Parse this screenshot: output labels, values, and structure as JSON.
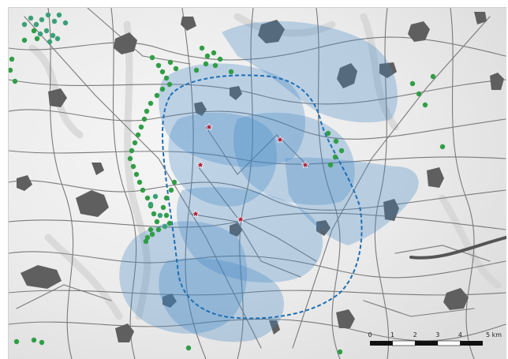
{
  "map": {
    "base_color": "#ececec",
    "road_color": "#7a7a7a",
    "settlement_color": "#5f5f5f",
    "coverage_color": "#3f86c4",
    "boundary_color": "#1f6fb5",
    "site_marker_color": "#b0203a",
    "green_point_color": "#2f9e44",
    "teal_point_color": "#3aa079",
    "coverage_layers": 8,
    "site_markers": 7,
    "marker_symbol": "star",
    "boundary_style": "dashed"
  },
  "scale_bar": {
    "ticks": [
      "0",
      "1",
      "2",
      "3",
      "4",
      "5 km"
    ],
    "segments": 5
  }
}
